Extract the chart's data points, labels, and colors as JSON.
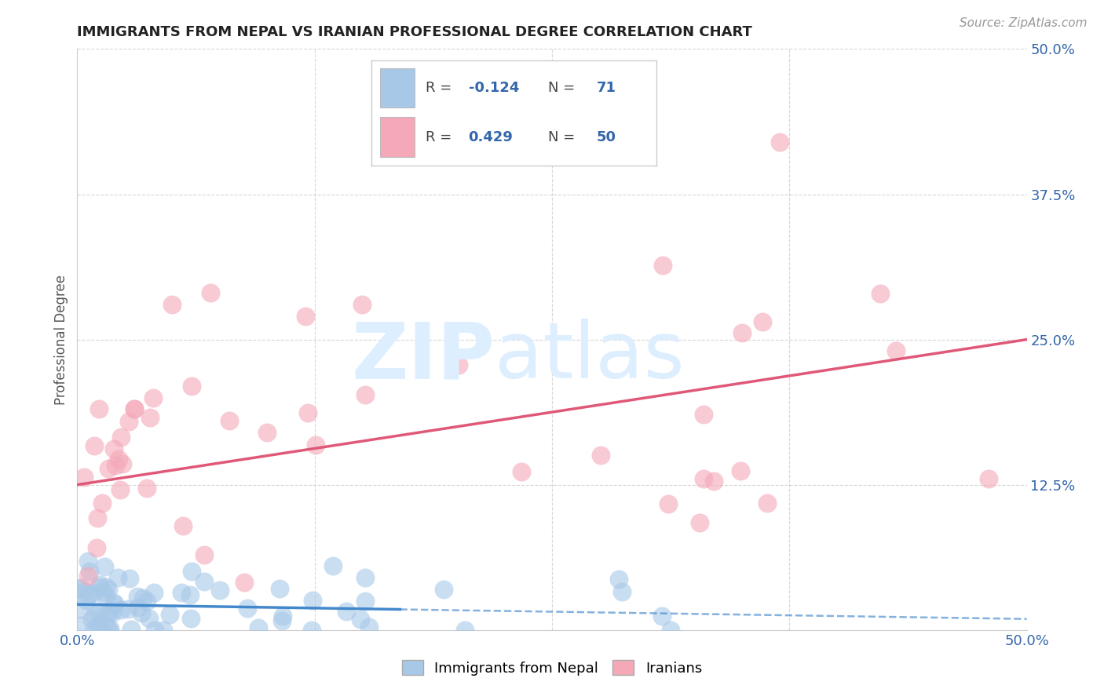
{
  "title": "IMMIGRANTS FROM NEPAL VS IRANIAN PROFESSIONAL DEGREE CORRELATION CHART",
  "source": "Source: ZipAtlas.com",
  "ylabel": "Professional Degree",
  "ylabel_right_ticks": [
    "50.0%",
    "37.5%",
    "25.0%",
    "12.5%",
    ""
  ],
  "ylabel_right_values": [
    0.5,
    0.375,
    0.25,
    0.125,
    0.0
  ],
  "xlim": [
    0.0,
    0.5
  ],
  "ylim": [
    0.0,
    0.5
  ],
  "nepal_color": "#a8c8e8",
  "iran_color": "#f4a8b8",
  "nepal_edge_color": "#7aaad0",
  "iran_edge_color": "#e87090",
  "nepal_line_color": "#4488cc",
  "iran_line_color": "#e05878",
  "text_color": "#3366aa",
  "title_color": "#222222",
  "grid_color": "#cccccc",
  "background_color": "#ffffff",
  "watermark_color": "#ddeeff",
  "legend_r1_label": "R = ",
  "legend_r1_val": "-0.124",
  "legend_n1_label": "N = ",
  "legend_n1_val": "71",
  "legend_r2_val": "0.429",
  "legend_n2_val": "50",
  "nepal_label": "Immigrants from Nepal",
  "iran_label": "Iranians"
}
